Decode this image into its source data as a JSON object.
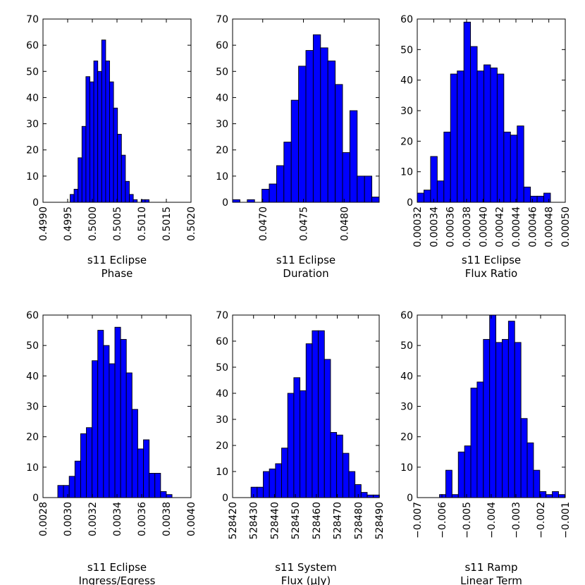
{
  "colors": {
    "bar": "#0000ff",
    "edge": "#000000",
    "background": "#ffffff"
  },
  "chart_data": [
    {
      "type": "bar",
      "subtype": "histogram",
      "xlabel": [
        "s11 Eclipse",
        "Phase"
      ],
      "ylabel": "",
      "xlim": [
        0.499,
        0.502
      ],
      "ylim": [
        0,
        70
      ],
      "xticks": [
        0.499,
        0.4995,
        0.5,
        0.5005,
        0.501,
        0.5015,
        0.502
      ],
      "xtick_labels": [
        "0.4990",
        "0.4995",
        "0.5000",
        "0.5005",
        "0.5010",
        "0.5015",
        "0.5020"
      ],
      "yticks": [
        0,
        10,
        20,
        30,
        40,
        50,
        60,
        70
      ],
      "bin_edges": [
        0.49959,
        0.49962,
        0.49965,
        0.49968,
        0.49971,
        0.49975,
        0.49978,
        0.49981,
        0.49984,
        0.49987,
        0.4999,
        0.49993,
        0.49996,
        0.49999,
        0.50002,
        0.50005,
        0.50008,
        0.50011,
        0.50014,
        0.50017,
        0.5002,
        0.50023,
        0.50026,
        0.50029,
        0.50032,
        0.50035,
        0.50038,
        0.50041,
        0.50044,
        0.50047,
        0.50051,
        0.50054,
        0.50057,
        0.5006,
        0.50063,
        0.50066,
        0.50069,
        0.50072,
        0.50075,
        0.50078,
        0.50081,
        0.50084,
        0.50087,
        0.5009,
        0.50093,
        0.50096,
        0.50099,
        0.50102,
        0.50105,
        0.50108,
        0.50111,
        0.50114,
        0.50117,
        0.5012,
        0.50123,
        0.50127,
        0.5013,
        0.50133,
        0.50136,
        0.50139,
        0.50142,
        0.50145,
        0.50148,
        0.50151,
        0.50154,
        0.50157,
        0.5016,
        0.50163,
        0.50166,
        0.50169,
        0.50172
      ],
      "counts": []
    }
  ]
}
